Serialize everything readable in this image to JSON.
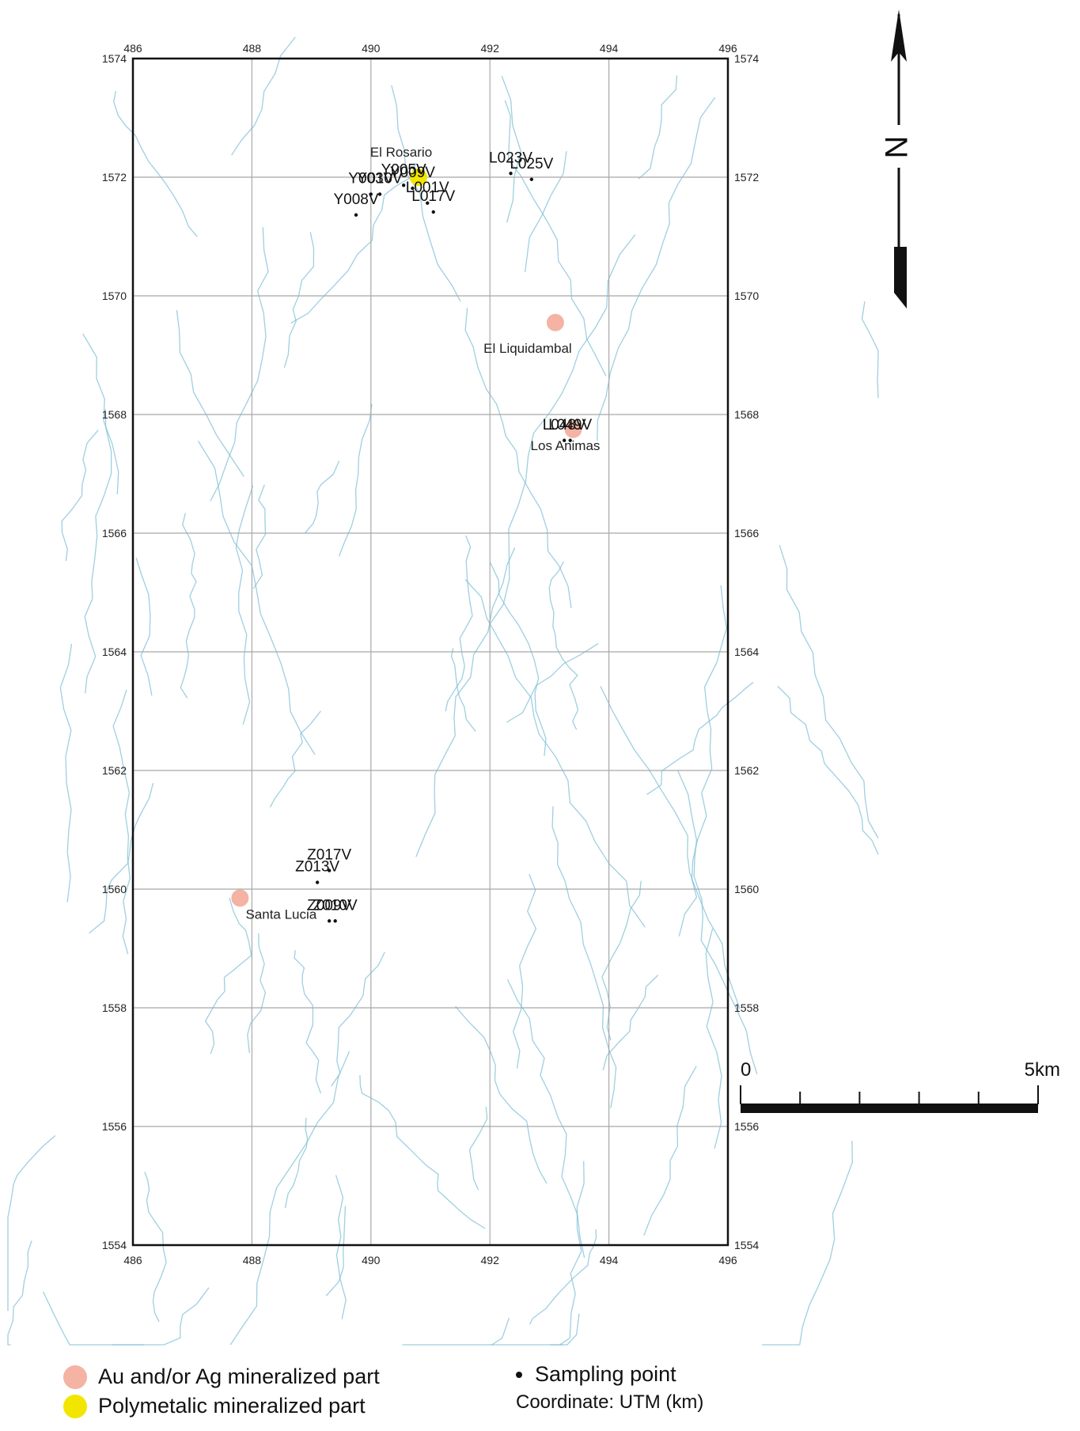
{
  "map": {
    "x_ticks": [
      "486",
      "488",
      "490",
      "492",
      "494",
      "496"
    ],
    "y_ticks": [
      "1574",
      "1572",
      "1570",
      "1568",
      "1566",
      "1564",
      "1562",
      "1560",
      "1558",
      "1556",
      "1554"
    ],
    "x_range_km": [
      486,
      496
    ],
    "y_range_km": [
      1554,
      1574
    ],
    "grid": "2 km grid",
    "colors": {
      "frame": "#111111",
      "grid": "#a8a8a8",
      "rivers": "#7fbfd6",
      "au_ag": "#f4b3a3",
      "polymetallic": "#f2e600",
      "sample": "#111111"
    }
  },
  "north_arrow": {
    "label": "N"
  },
  "scale_bar": {
    "start_label": "0",
    "end_label": "5km",
    "length_km": 5,
    "divisions": 5
  },
  "sites": [
    {
      "name": "El Rosario",
      "x": 490.8,
      "y": 1572.0,
      "type": "polymetallic"
    },
    {
      "name": "El Liquidambal",
      "x": 493.1,
      "y": 1569.55,
      "type": "au_ag"
    },
    {
      "name": "Los Animas",
      "x": 493.4,
      "y": 1567.75,
      "type": "au_ag"
    },
    {
      "name": "Santa Lucia",
      "x": 487.8,
      "y": 1559.85,
      "type": "au_ag"
    }
  ],
  "samples": [
    {
      "label": "L023V",
      "x": 492.35,
      "y": 1572.25
    },
    {
      "label": "L025V",
      "x": 492.7,
      "y": 1572.15
    },
    {
      "label": "Y003V",
      "x": 490.0,
      "y": 1571.9
    },
    {
      "label": "Y010V",
      "x": 490.15,
      "y": 1571.9
    },
    {
      "label": "Y008V",
      "x": 489.75,
      "y": 1571.55
    },
    {
      "label": "Y005V",
      "x": 490.55,
      "y": 1572.05
    },
    {
      "label": "Y009V",
      "x": 490.7,
      "y": 1572.0
    },
    {
      "label": "L001V",
      "x": 490.95,
      "y": 1571.75
    },
    {
      "label": "L017V",
      "x": 491.05,
      "y": 1571.6
    },
    {
      "label": "L048V",
      "x": 493.25,
      "y": 1567.75
    },
    {
      "label": "L049V",
      "x": 493.35,
      "y": 1567.75
    },
    {
      "label": "Z013V",
      "x": 489.1,
      "y": 1560.3
    },
    {
      "label": "Z017V",
      "x": 489.3,
      "y": 1560.5
    },
    {
      "label": "Z009V",
      "x": 489.3,
      "y": 1559.65
    },
    {
      "label": "Z010V",
      "x": 489.4,
      "y": 1559.65
    }
  ],
  "legend": {
    "au_ag": "Au and/or Ag mineralized part",
    "polymetallic": "Polymetalic mineralized part",
    "sampling": "Sampling point",
    "coordinate": "Coordinate: UTM (km)"
  }
}
